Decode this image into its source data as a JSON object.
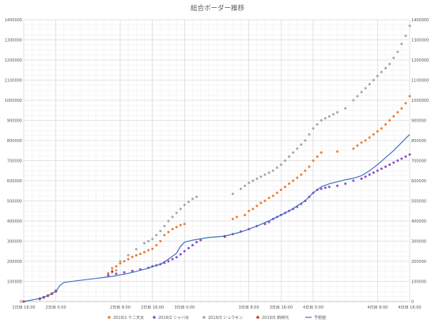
{
  "chart_data": {
    "type": "scatter",
    "title": "総合ボーダー推移",
    "x_unit": "hours",
    "xlim": [
      0,
      96
    ],
    "ylim": [
      0,
      1400000
    ],
    "y_ticks": [
      0,
      100000,
      200000,
      300000,
      400000,
      500000,
      600000,
      700000,
      800000,
      900000,
      1000000,
      1100000,
      1200000,
      1300000,
      1400000
    ],
    "x_ticks": [
      {
        "x": 0,
        "label": "1日目 16:00"
      },
      {
        "x": 8,
        "label": "2日目 0:00"
      },
      {
        "x": 24,
        "label": "2日目 8:00"
      },
      {
        "x": 32,
        "label": "2日目 16:00"
      },
      {
        "x": 40,
        "label": "3日目 0:00"
      },
      {
        "x": 56,
        "label": "3日目 8:00"
      },
      {
        "x": 64,
        "label": "3日目 16:00"
      },
      {
        "x": 72,
        "label": "4日目 0:00"
      },
      {
        "x": 88,
        "label": "4日目 8:00"
      },
      {
        "x": 96,
        "label": "4日目 16:00"
      }
    ],
    "grid": true,
    "legend_position": "bottom",
    "series": [
      {
        "name": "2019/1 十二天女",
        "kind": "scatter",
        "color": "#ED7D31",
        "points": [
          [
            0,
            0
          ],
          [
            4,
            15000
          ],
          [
            5,
            22000
          ],
          [
            6,
            30000
          ],
          [
            7,
            40000
          ],
          [
            8,
            55000
          ],
          [
            21,
            140000
          ],
          [
            22,
            165000
          ],
          [
            23,
            175000
          ],
          [
            24,
            190000
          ],
          [
            25,
            200000
          ],
          [
            26,
            210000
          ],
          [
            27,
            222000
          ],
          [
            28,
            230000
          ],
          [
            29,
            237000
          ],
          [
            30,
            245000
          ],
          [
            31,
            255000
          ],
          [
            32,
            262000
          ],
          [
            33,
            280000
          ],
          [
            34,
            300000
          ],
          [
            35,
            330000
          ],
          [
            36,
            345000
          ],
          [
            37,
            360000
          ],
          [
            38,
            370000
          ],
          [
            39,
            380000
          ],
          [
            40,
            385000
          ],
          [
            52,
            410000
          ],
          [
            53,
            420000
          ],
          [
            55,
            430000
          ],
          [
            56,
            450000
          ],
          [
            57,
            460000
          ],
          [
            58,
            475000
          ],
          [
            59,
            490000
          ],
          [
            60,
            500000
          ],
          [
            61,
            515000
          ],
          [
            62,
            525000
          ],
          [
            63,
            540000
          ],
          [
            64,
            555000
          ],
          [
            65,
            570000
          ],
          [
            66,
            585000
          ],
          [
            67,
            600000
          ],
          [
            68,
            615000
          ],
          [
            69,
            630000
          ],
          [
            70,
            650000
          ],
          [
            71,
            670000
          ],
          [
            72,
            700000
          ],
          [
            73,
            720000
          ],
          [
            74,
            740000
          ],
          [
            78,
            745000
          ],
          [
            82,
            760000
          ],
          [
            83,
            775000
          ],
          [
            84,
            790000
          ],
          [
            85,
            800000
          ],
          [
            86,
            815000
          ],
          [
            87,
            830000
          ],
          [
            88,
            845000
          ],
          [
            89,
            860000
          ],
          [
            90,
            880000
          ],
          [
            91,
            900000
          ],
          [
            92,
            920000
          ],
          [
            93,
            940000
          ],
          [
            94,
            960000
          ],
          [
            95,
            985000
          ],
          [
            96,
            1020000
          ]
        ]
      },
      {
        "name": "2019/2 シャバ女",
        "kind": "scatter",
        "color": "#8B4FC9",
        "points": [
          [
            0,
            0
          ],
          [
            4,
            12000
          ],
          [
            5,
            20000
          ],
          [
            6,
            28000
          ],
          [
            7,
            38000
          ],
          [
            8,
            50000
          ],
          [
            21,
            130000
          ],
          [
            23,
            138000
          ],
          [
            25,
            145000
          ],
          [
            27,
            152000
          ],
          [
            29,
            160000
          ],
          [
            31,
            168000
          ],
          [
            32,
            175000
          ],
          [
            33,
            180000
          ],
          [
            34,
            185000
          ],
          [
            35,
            192000
          ],
          [
            36,
            200000
          ],
          [
            37,
            210000
          ],
          [
            38,
            220000
          ],
          [
            39,
            235000
          ],
          [
            40,
            250000
          ],
          [
            41,
            265000
          ],
          [
            42,
            280000
          ],
          [
            43,
            295000
          ],
          [
            44,
            305000
          ],
          [
            50,
            325000
          ],
          [
            52,
            335000
          ],
          [
            54,
            348000
          ],
          [
            56,
            360000
          ],
          [
            58,
            375000
          ],
          [
            60,
            385000
          ],
          [
            61,
            395000
          ],
          [
            62,
            410000
          ],
          [
            63,
            420000
          ],
          [
            64,
            430000
          ],
          [
            65,
            440000
          ],
          [
            66,
            450000
          ],
          [
            67,
            460000
          ],
          [
            68,
            470000
          ],
          [
            69,
            485000
          ],
          [
            70,
            500000
          ],
          [
            71,
            520000
          ],
          [
            72,
            540000
          ],
          [
            73,
            555000
          ],
          [
            74,
            560000
          ],
          [
            75,
            565000
          ],
          [
            76,
            570000
          ],
          [
            78,
            575000
          ],
          [
            80,
            585000
          ],
          [
            82,
            600000
          ],
          [
            84,
            610000
          ],
          [
            85,
            620000
          ],
          [
            86,
            630000
          ],
          [
            87,
            640000
          ],
          [
            88,
            650000
          ],
          [
            89,
            660000
          ],
          [
            90,
            670000
          ],
          [
            91,
            680000
          ],
          [
            92,
            690000
          ],
          [
            93,
            700000
          ],
          [
            94,
            710000
          ],
          [
            95,
            720000
          ],
          [
            96,
            730000
          ]
        ]
      },
      {
        "name": "2019/3 シュウキン",
        "kind": "scatter",
        "color": "#A5A5A5",
        "points": [
          [
            0,
            0
          ],
          [
            4,
            15000
          ],
          [
            6,
            30000
          ],
          [
            8,
            55000
          ],
          [
            22,
            145000
          ],
          [
            23,
            155000
          ],
          [
            24,
            200000
          ],
          [
            26,
            230000
          ],
          [
            28,
            260000
          ],
          [
            30,
            290000
          ],
          [
            31,
            300000
          ],
          [
            32,
            310000
          ],
          [
            33,
            330000
          ],
          [
            34,
            350000
          ],
          [
            35,
            375000
          ],
          [
            36,
            400000
          ],
          [
            37,
            420000
          ],
          [
            38,
            440000
          ],
          [
            39,
            460000
          ],
          [
            40,
            480000
          ],
          [
            41,
            495000
          ],
          [
            42,
            510000
          ],
          [
            43,
            520000
          ],
          [
            52,
            535000
          ],
          [
            54,
            560000
          ],
          [
            55,
            575000
          ],
          [
            56,
            590000
          ],
          [
            57,
            600000
          ],
          [
            58,
            610000
          ],
          [
            59,
            620000
          ],
          [
            60,
            630000
          ],
          [
            61,
            640000
          ],
          [
            62,
            650000
          ],
          [
            63,
            665000
          ],
          [
            64,
            680000
          ],
          [
            65,
            700000
          ],
          [
            66,
            720000
          ],
          [
            67,
            740000
          ],
          [
            68,
            760000
          ],
          [
            69,
            780000
          ],
          [
            70,
            800000
          ],
          [
            71,
            830000
          ],
          [
            72,
            860000
          ],
          [
            73,
            880000
          ],
          [
            74,
            900000
          ],
          [
            75,
            910000
          ],
          [
            76,
            920000
          ],
          [
            77,
            930000
          ],
          [
            78,
            940000
          ],
          [
            80,
            960000
          ],
          [
            82,
            1000000
          ],
          [
            83,
            1020000
          ],
          [
            84,
            1040000
          ],
          [
            85,
            1060000
          ],
          [
            86,
            1080000
          ],
          [
            87,
            1100000
          ],
          [
            88,
            1120000
          ],
          [
            89,
            1140000
          ],
          [
            90,
            1160000
          ],
          [
            91,
            1180000
          ],
          [
            92,
            1210000
          ],
          [
            93,
            1240000
          ],
          [
            94,
            1280000
          ],
          [
            95,
            1320000
          ],
          [
            96,
            1370000
          ]
        ]
      },
      {
        "name": "2019/5 新時代",
        "kind": "scatter",
        "color": "#C0392B",
        "points": [
          [
            0,
            0
          ],
          [
            4,
            14000
          ],
          [
            5,
            21000
          ],
          [
            6,
            29000
          ],
          [
            7,
            39000
          ],
          [
            8,
            52000
          ],
          [
            22,
            150000
          ],
          [
            50,
            322000
          ]
        ]
      },
      {
        "name": "予想値",
        "kind": "line",
        "color": "#4472C4",
        "points": [
          [
            0,
            0
          ],
          [
            4,
            15000
          ],
          [
            6,
            30000
          ],
          [
            8,
            50000
          ],
          [
            9,
            80000
          ],
          [
            10,
            95000
          ],
          [
            14,
            105000
          ],
          [
            18,
            115000
          ],
          [
            22,
            125000
          ],
          [
            26,
            140000
          ],
          [
            30,
            160000
          ],
          [
            34,
            185000
          ],
          [
            36,
            210000
          ],
          [
            38,
            240000
          ],
          [
            39,
            275000
          ],
          [
            40,
            295000
          ],
          [
            42,
            305000
          ],
          [
            46,
            318000
          ],
          [
            50,
            325000
          ],
          [
            54,
            345000
          ],
          [
            58,
            375000
          ],
          [
            62,
            410000
          ],
          [
            66,
            450000
          ],
          [
            70,
            500000
          ],
          [
            72,
            540000
          ],
          [
            74,
            570000
          ],
          [
            76,
            585000
          ],
          [
            78,
            595000
          ],
          [
            80,
            605000
          ],
          [
            82,
            612000
          ],
          [
            84,
            625000
          ],
          [
            86,
            650000
          ],
          [
            88,
            680000
          ],
          [
            90,
            715000
          ],
          [
            92,
            750000
          ],
          [
            94,
            790000
          ],
          [
            96,
            830000
          ]
        ]
      }
    ]
  }
}
